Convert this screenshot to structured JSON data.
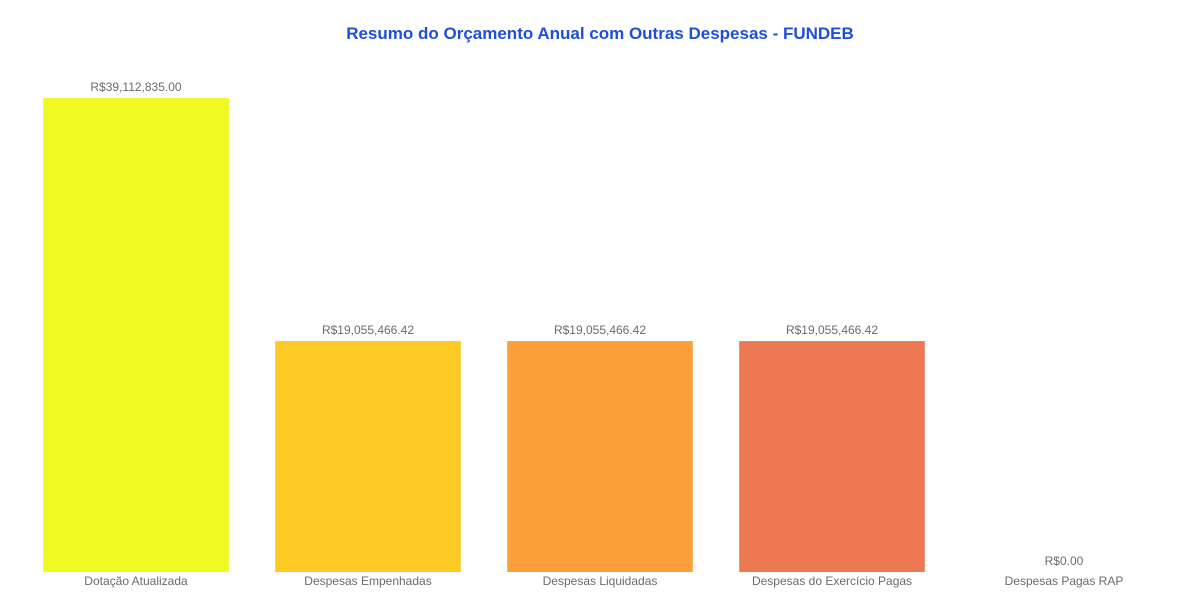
{
  "chart_data": {
    "type": "bar",
    "title": "Resumo do Orçamento Anual com Outras Despesas - FUNDEB",
    "categories": [
      "Dotação Atualizada",
      "Despesas Empenhadas",
      "Despesas Liquidadas",
      "Despesas do Exercício Pagas",
      "Despesas Pagas RAP"
    ],
    "values": [
      39112835.0,
      19055466.42,
      19055466.42,
      19055466.42,
      0.0
    ],
    "value_labels": [
      "R$39,112,835.00",
      "R$19,055,466.42",
      "R$19,055,466.42",
      "R$19,055,466.42",
      "R$0.00"
    ],
    "colors": [
      "#f0f921",
      "#fdca26",
      "#fb9f3a",
      "#ed7953",
      "#d8576b"
    ],
    "xlabel": "",
    "ylabel": "",
    "ylim": [
      0,
      39112835.0
    ],
    "grid": false,
    "legend": "none"
  }
}
